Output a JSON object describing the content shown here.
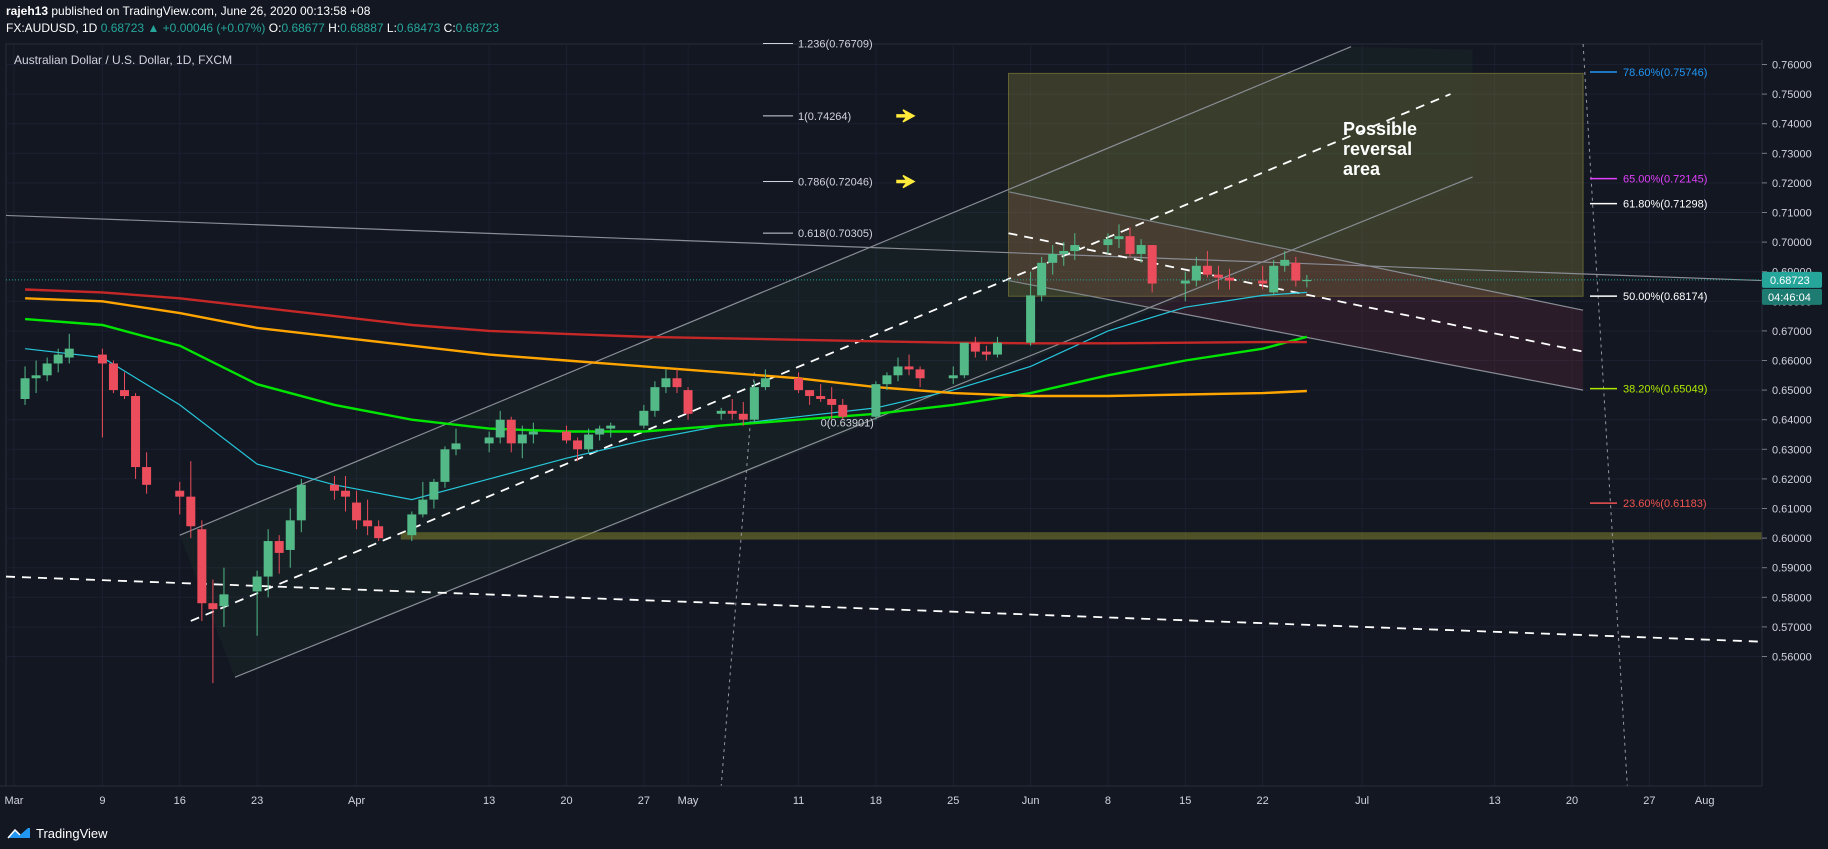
{
  "header": {
    "author": "rajeh13",
    "published_text": "published on TradingView.com, June 26, 2020 00:13:58 +08",
    "symbol": "FX:AUDUSD, 1D",
    "last": "0.68723",
    "change": "+0.00046 (+0.07%)",
    "o_label": "O:",
    "o_value": "0.68677",
    "h_label": "H:",
    "h_value": "0.68887",
    "l_label": "L:",
    "l_value": "0.68473",
    "c_label": "C:",
    "c_value": "0.68723"
  },
  "footer": {
    "brand": "TradingView"
  },
  "colors": {
    "background": "#131722",
    "up": "#53b987",
    "down": "#eb4d5c",
    "ema20": "#26c6da",
    "ma50": "#00e600",
    "ma100": "#ffa500",
    "ma200": "#c62828",
    "fib_786": "#2196f3",
    "fib_650": "#e040fb",
    "fib_382": "#aeea00",
    "fib_236": "#ef5350"
  },
  "chart_data": {
    "type": "candlestick",
    "title": "Australian Dollar / U.S. Dollar, 1D, FXCM",
    "ylim": [
      0.553,
      0.764
    ],
    "y_ticks": [
      "0.76000",
      "0.75000",
      "0.74000",
      "0.73000",
      "0.72000",
      "0.71000",
      "0.70000",
      "0.69000",
      "0.68000",
      "0.67000",
      "0.66000",
      "0.65000",
      "0.64000",
      "0.63000",
      "0.62000",
      "0.61000",
      "0.60000",
      "0.59000",
      "0.58000",
      "0.57000",
      "0.56000"
    ],
    "x_ticks": [
      "Mar",
      "9",
      "16",
      "23",
      "Apr",
      "13",
      "20",
      "27",
      "May",
      "11",
      "18",
      "25",
      "Jun",
      "8",
      "15",
      "22",
      "Jul",
      "13",
      "20",
      "27",
      "Aug"
    ],
    "current_price_label": "0.68723",
    "countdown_label": "04:46:04",
    "candles": [
      {
        "date": "2020-03-02",
        "o": 0.647,
        "h": 0.658,
        "l": 0.645,
        "c": 0.654
      },
      {
        "date": "2020-03-03",
        "o": 0.654,
        "h": 0.66,
        "l": 0.649,
        "c": 0.655
      },
      {
        "date": "2020-03-04",
        "o": 0.655,
        "h": 0.661,
        "l": 0.653,
        "c": 0.659
      },
      {
        "date": "2020-03-05",
        "o": 0.659,
        "h": 0.664,
        "l": 0.656,
        "c": 0.662
      },
      {
        "date": "2020-03-06",
        "o": 0.661,
        "h": 0.669,
        "l": 0.659,
        "c": 0.664
      },
      {
        "date": "2020-03-09",
        "o": 0.662,
        "h": 0.664,
        "l": 0.634,
        "c": 0.659
      },
      {
        "date": "2020-03-10",
        "o": 0.659,
        "h": 0.66,
        "l": 0.649,
        "c": 0.65
      },
      {
        "date": "2020-03-11",
        "o": 0.65,
        "h": 0.656,
        "l": 0.647,
        "c": 0.648
      },
      {
        "date": "2020-03-12",
        "o": 0.648,
        "h": 0.649,
        "l": 0.62,
        "c": 0.624
      },
      {
        "date": "2020-03-13",
        "o": 0.624,
        "h": 0.629,
        "l": 0.615,
        "c": 0.618
      },
      {
        "date": "2020-03-16",
        "o": 0.616,
        "h": 0.619,
        "l": 0.608,
        "c": 0.614
      },
      {
        "date": "2020-03-17",
        "o": 0.614,
        "h": 0.626,
        "l": 0.6,
        "c": 0.604
      },
      {
        "date": "2020-03-18",
        "o": 0.603,
        "h": 0.606,
        "l": 0.572,
        "c": 0.578
      },
      {
        "date": "2020-03-19",
        "o": 0.578,
        "h": 0.586,
        "l": 0.551,
        "c": 0.576
      },
      {
        "date": "2020-03-20",
        "o": 0.577,
        "h": 0.59,
        "l": 0.57,
        "c": 0.581
      },
      {
        "date": "2020-03-23",
        "o": 0.582,
        "h": 0.589,
        "l": 0.567,
        "c": 0.587
      },
      {
        "date": "2020-03-24",
        "o": 0.587,
        "h": 0.603,
        "l": 0.58,
        "c": 0.599
      },
      {
        "date": "2020-03-25",
        "o": 0.599,
        "h": 0.601,
        "l": 0.588,
        "c": 0.595
      },
      {
        "date": "2020-03-26",
        "o": 0.596,
        "h": 0.61,
        "l": 0.59,
        "c": 0.606
      },
      {
        "date": "2020-03-27",
        "o": 0.606,
        "h": 0.62,
        "l": 0.602,
        "c": 0.618
      },
      {
        "date": "2020-03-30",
        "o": 0.618,
        "h": 0.621,
        "l": 0.613,
        "c": 0.616
      },
      {
        "date": "2020-03-31",
        "o": 0.616,
        "h": 0.621,
        "l": 0.609,
        "c": 0.614
      },
      {
        "date": "2020-04-01",
        "o": 0.612,
        "h": 0.616,
        "l": 0.603,
        "c": 0.606
      },
      {
        "date": "2020-04-02",
        "o": 0.606,
        "h": 0.613,
        "l": 0.601,
        "c": 0.604
      },
      {
        "date": "2020-04-03",
        "o": 0.604,
        "h": 0.606,
        "l": 0.599,
        "c": 0.6
      },
      {
        "date": "2020-04-06",
        "o": 0.601,
        "h": 0.609,
        "l": 0.599,
        "c": 0.608
      },
      {
        "date": "2020-04-07",
        "o": 0.608,
        "h": 0.619,
        "l": 0.607,
        "c": 0.613
      },
      {
        "date": "2020-04-08",
        "o": 0.613,
        "h": 0.62,
        "l": 0.61,
        "c": 0.619
      },
      {
        "date": "2020-04-09",
        "o": 0.619,
        "h": 0.631,
        "l": 0.617,
        "c": 0.63
      },
      {
        "date": "2020-04-10",
        "o": 0.63,
        "h": 0.637,
        "l": 0.628,
        "c": 0.632
      },
      {
        "date": "2020-04-13",
        "o": 0.632,
        "h": 0.636,
        "l": 0.629,
        "c": 0.634
      },
      {
        "date": "2020-04-14",
        "o": 0.634,
        "h": 0.643,
        "l": 0.632,
        "c": 0.64
      },
      {
        "date": "2020-04-15",
        "o": 0.64,
        "h": 0.641,
        "l": 0.629,
        "c": 0.632
      },
      {
        "date": "2020-04-16",
        "o": 0.632,
        "h": 0.638,
        "l": 0.627,
        "c": 0.635
      },
      {
        "date": "2020-04-17",
        "o": 0.635,
        "h": 0.639,
        "l": 0.632,
        "c": 0.636
      },
      {
        "date": "2020-04-20",
        "o": 0.636,
        "h": 0.638,
        "l": 0.632,
        "c": 0.633
      },
      {
        "date": "2020-04-21",
        "o": 0.633,
        "h": 0.634,
        "l": 0.626,
        "c": 0.63
      },
      {
        "date": "2020-04-22",
        "o": 0.63,
        "h": 0.637,
        "l": 0.629,
        "c": 0.635
      },
      {
        "date": "2020-04-23",
        "o": 0.635,
        "h": 0.638,
        "l": 0.633,
        "c": 0.637
      },
      {
        "date": "2020-04-24",
        "o": 0.637,
        "h": 0.639,
        "l": 0.634,
        "c": 0.638
      },
      {
        "date": "2020-04-27",
        "o": 0.638,
        "h": 0.645,
        "l": 0.637,
        "c": 0.643
      },
      {
        "date": "2020-04-28",
        "o": 0.643,
        "h": 0.653,
        "l": 0.641,
        "c": 0.651
      },
      {
        "date": "2020-04-29",
        "o": 0.651,
        "h": 0.657,
        "l": 0.649,
        "c": 0.654
      },
      {
        "date": "2020-04-30",
        "o": 0.654,
        "h": 0.657,
        "l": 0.649,
        "c": 0.651
      },
      {
        "date": "2020-05-01",
        "o": 0.65,
        "h": 0.651,
        "l": 0.64,
        "c": 0.642
      },
      {
        "date": "2020-05-04",
        "o": 0.642,
        "h": 0.644,
        "l": 0.64,
        "c": 0.643
      },
      {
        "date": "2020-05-05",
        "o": 0.643,
        "h": 0.647,
        "l": 0.64,
        "c": 0.642
      },
      {
        "date": "2020-05-06",
        "o": 0.642,
        "h": 0.646,
        "l": 0.638,
        "c": 0.64
      },
      {
        "date": "2020-05-07",
        "o": 0.64,
        "h": 0.653,
        "l": 0.639,
        "c": 0.651
      },
      {
        "date": "2020-05-08",
        "o": 0.651,
        "h": 0.657,
        "l": 0.65,
        "c": 0.654
      },
      {
        "date": "2020-05-11",
        "o": 0.654,
        "h": 0.656,
        "l": 0.649,
        "c": 0.65
      },
      {
        "date": "2020-05-12",
        "o": 0.65,
        "h": 0.65,
        "l": 0.645,
        "c": 0.648
      },
      {
        "date": "2020-05-13",
        "o": 0.648,
        "h": 0.652,
        "l": 0.646,
        "c": 0.647
      },
      {
        "date": "2020-05-14",
        "o": 0.647,
        "h": 0.651,
        "l": 0.64,
        "c": 0.645
      },
      {
        "date": "2020-05-15",
        "o": 0.645,
        "h": 0.647,
        "l": 0.64,
        "c": 0.641
      },
      {
        "date": "2020-05-18",
        "o": 0.641,
        "h": 0.653,
        "l": 0.64,
        "c": 0.652
      },
      {
        "date": "2020-05-19",
        "o": 0.652,
        "h": 0.656,
        "l": 0.65,
        "c": 0.655
      },
      {
        "date": "2020-05-20",
        "o": 0.655,
        "h": 0.661,
        "l": 0.653,
        "c": 0.658
      },
      {
        "date": "2020-05-21",
        "o": 0.658,
        "h": 0.662,
        "l": 0.655,
        "c": 0.657
      },
      {
        "date": "2020-05-22",
        "o": 0.657,
        "h": 0.658,
        "l": 0.651,
        "c": 0.654
      },
      {
        "date": "2020-05-25",
        "o": 0.654,
        "h": 0.658,
        "l": 0.652,
        "c": 0.655
      },
      {
        "date": "2020-05-26",
        "o": 0.655,
        "h": 0.666,
        "l": 0.654,
        "c": 0.666
      },
      {
        "date": "2020-05-27",
        "o": 0.666,
        "h": 0.668,
        "l": 0.661,
        "c": 0.663
      },
      {
        "date": "2020-05-28",
        "o": 0.663,
        "h": 0.665,
        "l": 0.66,
        "c": 0.662
      },
      {
        "date": "2020-05-29",
        "o": 0.662,
        "h": 0.668,
        "l": 0.661,
        "c": 0.666
      },
      {
        "date": "2020-06-01",
        "o": 0.666,
        "h": 0.69,
        "l": 0.665,
        "c": 0.682
      },
      {
        "date": "2020-06-02",
        "o": 0.682,
        "h": 0.695,
        "l": 0.68,
        "c": 0.693
      },
      {
        "date": "2020-06-03",
        "o": 0.693,
        "h": 0.699,
        "l": 0.689,
        "c": 0.696
      },
      {
        "date": "2020-06-04",
        "o": 0.696,
        "h": 0.7,
        "l": 0.692,
        "c": 0.697
      },
      {
        "date": "2020-06-05",
        "o": 0.697,
        "h": 0.703,
        "l": 0.694,
        "c": 0.699
      },
      {
        "date": "2020-06-08",
        "o": 0.699,
        "h": 0.703,
        "l": 0.696,
        "c": 0.701
      },
      {
        "date": "2020-06-09",
        "o": 0.701,
        "h": 0.706,
        "l": 0.698,
        "c": 0.702
      },
      {
        "date": "2020-06-10",
        "o": 0.702,
        "h": 0.705,
        "l": 0.695,
        "c": 0.696
      },
      {
        "date": "2020-06-11",
        "o": 0.696,
        "h": 0.701,
        "l": 0.693,
        "c": 0.699
      },
      {
        "date": "2020-06-12",
        "o": 0.699,
        "h": 0.699,
        "l": 0.683,
        "c": 0.686
      },
      {
        "date": "2020-06-15",
        "o": 0.686,
        "h": 0.69,
        "l": 0.68,
        "c": 0.687
      },
      {
        "date": "2020-06-16",
        "o": 0.687,
        "h": 0.695,
        "l": 0.685,
        "c": 0.692
      },
      {
        "date": "2020-06-17",
        "o": 0.692,
        "h": 0.697,
        "l": 0.688,
        "c": 0.689
      },
      {
        "date": "2020-06-18",
        "o": 0.689,
        "h": 0.692,
        "l": 0.684,
        "c": 0.688
      },
      {
        "date": "2020-06-19",
        "o": 0.688,
        "h": 0.691,
        "l": 0.684,
        "c": 0.687
      },
      {
        "date": "2020-06-22",
        "o": 0.687,
        "h": 0.692,
        "l": 0.684,
        "c": 0.686
      },
      {
        "date": "2020-06-23",
        "o": 0.683,
        "h": 0.694,
        "l": 0.682,
        "c": 0.692
      },
      {
        "date": "2020-06-24",
        "o": 0.692,
        "h": 0.697,
        "l": 0.69,
        "c": 0.694
      },
      {
        "date": "2020-06-25",
        "o": 0.693,
        "h": 0.695,
        "l": 0.685,
        "c": 0.687
      },
      {
        "date": "2020-06-26",
        "o": 0.6868,
        "h": 0.6889,
        "l": 0.6847,
        "c": 0.6872
      }
    ],
    "moving_averages": [
      {
        "name": "",
        "color": "#26c6da",
        "points": [
          [
            "2020-03-02",
            0.664
          ],
          [
            "2020-03-09",
            0.661
          ],
          [
            "2020-03-16",
            0.645
          ],
          [
            "2020-03-23",
            0.625
          ],
          [
            "2020-03-30",
            0.618
          ],
          [
            "2020-04-06",
            0.613
          ],
          [
            "2020-04-13",
            0.62
          ],
          [
            "2020-04-20",
            0.627
          ],
          [
            "2020-04-27",
            0.633
          ],
          [
            "2020-05-04",
            0.638
          ],
          [
            "2020-05-11",
            0.641
          ],
          [
            "2020-05-18",
            0.644
          ],
          [
            "2020-05-25",
            0.65
          ],
          [
            "2020-06-01",
            0.658
          ],
          [
            "2020-06-08",
            0.67
          ],
          [
            "2020-06-15",
            0.678
          ],
          [
            "2020-06-22",
            0.682
          ],
          [
            "2020-06-26",
            0.683
          ]
        ]
      },
      {
        "name": "",
        "color": "#00e600",
        "points": [
          [
            "2020-03-02",
            0.674
          ],
          [
            "2020-03-09",
            0.672
          ],
          [
            "2020-03-16",
            0.665
          ],
          [
            "2020-03-23",
            0.652
          ],
          [
            "2020-03-30",
            0.645
          ],
          [
            "2020-04-06",
            0.64
          ],
          [
            "2020-04-13",
            0.637
          ],
          [
            "2020-04-20",
            0.636
          ],
          [
            "2020-04-27",
            0.636
          ],
          [
            "2020-05-04",
            0.638
          ],
          [
            "2020-05-11",
            0.64
          ],
          [
            "2020-05-18",
            0.642
          ],
          [
            "2020-05-25",
            0.645
          ],
          [
            "2020-06-01",
            0.649
          ],
          [
            "2020-06-08",
            0.655
          ],
          [
            "2020-06-15",
            0.66
          ],
          [
            "2020-06-22",
            0.664
          ],
          [
            "2020-06-26",
            0.668
          ]
        ]
      },
      {
        "name": "",
        "color": "#ffa500",
        "points": [
          [
            "2020-03-02",
            0.681
          ],
          [
            "2020-03-09",
            0.68
          ],
          [
            "2020-03-16",
            0.676
          ],
          [
            "2020-03-23",
            0.671
          ],
          [
            "2020-03-30",
            0.668
          ],
          [
            "2020-04-06",
            0.665
          ],
          [
            "2020-04-13",
            0.662
          ],
          [
            "2020-04-20",
            0.66
          ],
          [
            "2020-04-27",
            0.658
          ],
          [
            "2020-05-04",
            0.656
          ],
          [
            "2020-05-11",
            0.654
          ],
          [
            "2020-05-18",
            0.651
          ],
          [
            "2020-05-25",
            0.649
          ],
          [
            "2020-06-01",
            0.648
          ],
          [
            "2020-06-08",
            0.648
          ],
          [
            "2020-06-15",
            0.6485
          ],
          [
            "2020-06-22",
            0.649
          ],
          [
            "2020-06-26",
            0.6497
          ]
        ]
      },
      {
        "name": "",
        "color": "#c62828",
        "points": [
          [
            "2020-03-02",
            0.684
          ],
          [
            "2020-03-09",
            0.683
          ],
          [
            "2020-03-16",
            0.681
          ],
          [
            "2020-03-23",
            0.678
          ],
          [
            "2020-03-30",
            0.675
          ],
          [
            "2020-04-06",
            0.672
          ],
          [
            "2020-04-13",
            0.67
          ],
          [
            "2020-04-20",
            0.669
          ],
          [
            "2020-04-27",
            0.668
          ],
          [
            "2020-05-04",
            0.6675
          ],
          [
            "2020-05-11",
            0.667
          ],
          [
            "2020-05-18",
            0.6665
          ],
          [
            "2020-05-25",
            0.666
          ],
          [
            "2020-06-01",
            0.6658
          ],
          [
            "2020-06-08",
            0.6658
          ],
          [
            "2020-06-15",
            0.666
          ],
          [
            "2020-06-22",
            0.6662
          ],
          [
            "2020-06-26",
            0.6662
          ]
        ]
      }
    ],
    "fib_extension_labels": [
      {
        "text": "1(0.74264)",
        "price": 0.74264
      },
      {
        "text": "0.786(0.72046)",
        "price": 0.72046
      },
      {
        "text": "0.618(0.70305)",
        "price": 0.70305
      },
      {
        "text": "0(0.63901)",
        "price": 0.63901
      },
      {
        "text": "1.236(0.76709)",
        "price": 0.76709
      }
    ],
    "fib_retracement_labels": [
      {
        "text": "78.60%(0.75746)",
        "price": 0.75746,
        "color": "#2196f3"
      },
      {
        "text": "65.00%(0.72145)",
        "price": 0.72145,
        "color": "#e040fb"
      },
      {
        "text": "61.80%(0.71298)",
        "price": 0.71298,
        "color": "#ffffff"
      },
      {
        "text": "50.00%(0.68174)",
        "price": 0.68174,
        "color": "#ffffff"
      },
      {
        "text": "38.20%(0.65049)",
        "price": 0.65049,
        "color": "#aeea00"
      },
      {
        "text": "23.60%(0.61183)",
        "price": 0.61183,
        "color": "#ef5350"
      }
    ],
    "annotations": [
      {
        "text": "Possible",
        "line": 1
      },
      {
        "text": "reversal",
        "line": 2
      },
      {
        "text": "area",
        "line": 3
      }
    ]
  }
}
